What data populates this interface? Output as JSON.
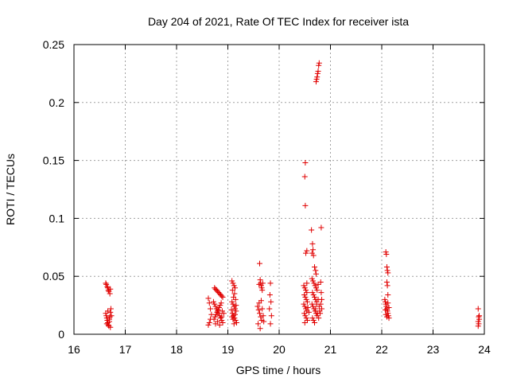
{
  "chart_data": {
    "type": "scatter",
    "title": "Day 204 of 2021, Rate Of TEC Index for receiver ista",
    "xlabel": "GPS time / hours",
    "ylabel": "ROTI / TECUs",
    "xlim": [
      16,
      24
    ],
    "ylim": [
      0,
      0.25
    ],
    "xticks": [
      16,
      17,
      18,
      19,
      20,
      21,
      22,
      23,
      24
    ],
    "xtick_labels": [
      "16",
      "17",
      "18",
      "19",
      "20",
      "21",
      "22",
      "23",
      "24"
    ],
    "yticks": [
      0,
      0.05,
      0.1,
      0.15,
      0.2,
      0.25
    ],
    "ytick_labels": [
      "0",
      "0.05",
      "0.1",
      "0.15",
      "0.2",
      "0.25"
    ],
    "grid": true,
    "marker": "+",
    "color": "#e00000",
    "series": [
      {
        "name": "ROTI",
        "points": [
          [
            16.62,
            0.044
          ],
          [
            16.63,
            0.043
          ],
          [
            16.65,
            0.041
          ],
          [
            16.66,
            0.04
          ],
          [
            16.67,
            0.038
          ],
          [
            16.68,
            0.037
          ],
          [
            16.7,
            0.035
          ],
          [
            16.71,
            0.039
          ],
          [
            16.62,
            0.018
          ],
          [
            16.63,
            0.016
          ],
          [
            16.64,
            0.014
          ],
          [
            16.65,
            0.012
          ],
          [
            16.66,
            0.01
          ],
          [
            16.67,
            0.008
          ],
          [
            16.68,
            0.007
          ],
          [
            16.69,
            0.011
          ],
          [
            16.7,
            0.015
          ],
          [
            16.71,
            0.019
          ],
          [
            16.72,
            0.022
          ],
          [
            16.64,
            0.009
          ],
          [
            16.66,
            0.02
          ],
          [
            16.69,
            0.013
          ],
          [
            16.71,
            0.006
          ],
          [
            16.73,
            0.016
          ],
          [
            18.62,
            0.031
          ],
          [
            18.64,
            0.027
          ],
          [
            18.66,
            0.022
          ],
          [
            18.68,
            0.017
          ],
          [
            18.62,
            0.008
          ],
          [
            18.64,
            0.01
          ],
          [
            18.66,
            0.013
          ],
          [
            18.74,
            0.04
          ],
          [
            18.76,
            0.039
          ],
          [
            18.78,
            0.038
          ],
          [
            18.8,
            0.037
          ],
          [
            18.82,
            0.036
          ],
          [
            18.84,
            0.035
          ],
          [
            18.86,
            0.034
          ],
          [
            18.88,
            0.033
          ],
          [
            18.9,
            0.032
          ],
          [
            18.72,
            0.028
          ],
          [
            18.74,
            0.026
          ],
          [
            18.76,
            0.024
          ],
          [
            18.78,
            0.022
          ],
          [
            18.8,
            0.02
          ],
          [
            18.82,
            0.018
          ],
          [
            18.84,
            0.016
          ],
          [
            18.86,
            0.014
          ],
          [
            18.88,
            0.012
          ],
          [
            18.9,
            0.01
          ],
          [
            18.73,
            0.013
          ],
          [
            18.75,
            0.015
          ],
          [
            18.77,
            0.017
          ],
          [
            18.79,
            0.019
          ],
          [
            18.81,
            0.021
          ],
          [
            18.83,
            0.023
          ],
          [
            18.85,
            0.025
          ],
          [
            18.87,
            0.027
          ],
          [
            18.89,
            0.02
          ],
          [
            18.76,
            0.009
          ],
          [
            18.8,
            0.011
          ],
          [
            18.84,
            0.008
          ],
          [
            18.88,
            0.015
          ],
          [
            18.92,
            0.018
          ],
          [
            19.08,
            0.046
          ],
          [
            19.1,
            0.044
          ],
          [
            19.12,
            0.042
          ],
          [
            19.14,
            0.04
          ],
          [
            19.09,
            0.038
          ],
          [
            19.13,
            0.035
          ],
          [
            19.11,
            0.032
          ],
          [
            19.15,
            0.03
          ],
          [
            19.08,
            0.028
          ],
          [
            19.1,
            0.026
          ],
          [
            19.12,
            0.024
          ],
          [
            19.14,
            0.022
          ],
          [
            19.16,
            0.02
          ],
          [
            19.09,
            0.018
          ],
          [
            19.11,
            0.016
          ],
          [
            19.13,
            0.014
          ],
          [
            19.15,
            0.012
          ],
          [
            19.17,
            0.01
          ],
          [
            19.1,
            0.013
          ],
          [
            19.14,
            0.017
          ],
          [
            19.07,
            0.021
          ],
          [
            19.16,
            0.025
          ],
          [
            19.12,
            0.009
          ],
          [
            19.08,
            0.015
          ],
          [
            19.58,
            0.024
          ],
          [
            19.6,
            0.021
          ],
          [
            19.62,
            0.018
          ],
          [
            19.64,
            0.015
          ],
          [
            19.66,
            0.012
          ],
          [
            19.59,
            0.009
          ],
          [
            19.63,
            0.005
          ],
          [
            19.61,
            0.027
          ],
          [
            19.62,
            0.061
          ],
          [
            19.63,
            0.047
          ],
          [
            19.64,
            0.044
          ],
          [
            19.65,
            0.042
          ],
          [
            19.66,
            0.04
          ],
          [
            19.67,
            0.038
          ],
          [
            19.68,
            0.044
          ],
          [
            19.61,
            0.043
          ],
          [
            19.65,
            0.029
          ],
          [
            19.67,
            0.022
          ],
          [
            19.69,
            0.016
          ],
          [
            19.7,
            0.011
          ],
          [
            19.83,
            0.044
          ],
          [
            19.82,
            0.034
          ],
          [
            19.84,
            0.028
          ],
          [
            19.81,
            0.022
          ],
          [
            19.85,
            0.016
          ],
          [
            19.83,
            0.009
          ],
          [
            20.51,
            0.148
          ],
          [
            20.5,
            0.136
          ],
          [
            20.51,
            0.111
          ],
          [
            20.54,
            0.072
          ],
          [
            20.52,
            0.07
          ],
          [
            20.48,
            0.042
          ],
          [
            20.5,
            0.04
          ],
          [
            20.52,
            0.038
          ],
          [
            20.54,
            0.036
          ],
          [
            20.49,
            0.034
          ],
          [
            20.51,
            0.032
          ],
          [
            20.53,
            0.03
          ],
          [
            20.55,
            0.028
          ],
          [
            20.48,
            0.026
          ],
          [
            20.5,
            0.024
          ],
          [
            20.52,
            0.022
          ],
          [
            20.54,
            0.02
          ],
          [
            20.49,
            0.018
          ],
          [
            20.51,
            0.016
          ],
          [
            20.53,
            0.014
          ],
          [
            20.55,
            0.012
          ],
          [
            20.5,
            0.01
          ],
          [
            20.56,
            0.023
          ],
          [
            20.58,
            0.019
          ],
          [
            20.54,
            0.044
          ],
          [
            20.63,
            0.09
          ],
          [
            20.65,
            0.078
          ],
          [
            20.66,
            0.073
          ],
          [
            20.64,
            0.07
          ],
          [
            20.67,
            0.068
          ],
          [
            20.69,
            0.058
          ],
          [
            20.71,
            0.055
          ],
          [
            20.72,
            0.052
          ],
          [
            20.64,
            0.048
          ],
          [
            20.66,
            0.046
          ],
          [
            20.68,
            0.044
          ],
          [
            20.7,
            0.042
          ],
          [
            20.72,
            0.04
          ],
          [
            20.74,
            0.038
          ],
          [
            20.65,
            0.036
          ],
          [
            20.67,
            0.034
          ],
          [
            20.69,
            0.032
          ],
          [
            20.71,
            0.03
          ],
          [
            20.73,
            0.028
          ],
          [
            20.64,
            0.026
          ],
          [
            20.66,
            0.024
          ],
          [
            20.68,
            0.022
          ],
          [
            20.7,
            0.02
          ],
          [
            20.72,
            0.018
          ],
          [
            20.74,
            0.016
          ],
          [
            20.65,
            0.014
          ],
          [
            20.67,
            0.012
          ],
          [
            20.69,
            0.01
          ],
          [
            20.71,
            0.022
          ],
          [
            20.73,
            0.026
          ],
          [
            20.76,
            0.03
          ],
          [
            20.78,
            0.024
          ],
          [
            20.75,
            0.018
          ],
          [
            20.77,
            0.014
          ],
          [
            20.79,
            0.02
          ],
          [
            20.76,
            0.043
          ],
          [
            20.72,
            0.218
          ],
          [
            20.73,
            0.22
          ],
          [
            20.74,
            0.222
          ],
          [
            20.75,
            0.225
          ],
          [
            20.76,
            0.227
          ],
          [
            20.77,
            0.232
          ],
          [
            20.78,
            0.234
          ],
          [
            20.82,
            0.092
          ],
          [
            20.81,
            0.045
          ],
          [
            20.82,
            0.036
          ],
          [
            20.83,
            0.03
          ],
          [
            20.81,
            0.026
          ],
          [
            20.83,
            0.022
          ],
          [
            20.8,
            0.018
          ],
          [
            22.08,
            0.071
          ],
          [
            22.09,
            0.069
          ],
          [
            22.1,
            0.058
          ],
          [
            22.11,
            0.055
          ],
          [
            22.12,
            0.053
          ],
          [
            22.1,
            0.045
          ],
          [
            22.11,
            0.042
          ],
          [
            22.12,
            0.034
          ],
          [
            22.06,
            0.03
          ],
          [
            22.07,
            0.028
          ],
          [
            22.08,
            0.026
          ],
          [
            22.09,
            0.024
          ],
          [
            22.1,
            0.022
          ],
          [
            22.11,
            0.02
          ],
          [
            22.12,
            0.018
          ],
          [
            22.13,
            0.016
          ],
          [
            22.14,
            0.014
          ],
          [
            22.08,
            0.017
          ],
          [
            22.1,
            0.015
          ],
          [
            22.12,
            0.027
          ],
          [
            22.14,
            0.023
          ],
          [
            22.07,
            0.021
          ],
          [
            23.88,
            0.022
          ],
          [
            23.89,
            0.015
          ],
          [
            23.9,
            0.013
          ],
          [
            23.88,
            0.011
          ],
          [
            23.89,
            0.009
          ],
          [
            23.88,
            0.007
          ],
          [
            23.9,
            0.016
          ]
        ]
      }
    ]
  }
}
